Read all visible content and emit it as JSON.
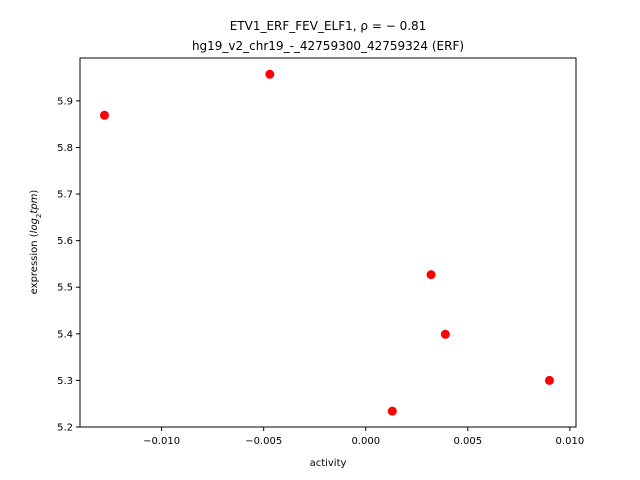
{
  "chart_data": {
    "type": "scatter",
    "title_line1": "ETV1_ERF_FEV_ELF1, ρ = − 0.81",
    "title_line2": "hg19_v2_chr19_-_42759300_42759324 (ERF)",
    "xlabel": "activity",
    "ylabel_prefix": "expression (",
    "ylabel_math": "log",
    "ylabel_sub": "2",
    "ylabel_math2": "tpm",
    "ylabel_suffix": ")",
    "xlim": [
      -0.014,
      0.0103
    ],
    "ylim": [
      5.2,
      5.992
    ],
    "xticks": [
      -0.01,
      -0.005,
      0.0,
      0.005,
      0.01
    ],
    "xtick_labels": [
      "−0.010",
      "−0.005",
      "0.000",
      "0.005",
      "0.010"
    ],
    "yticks": [
      5.2,
      5.3,
      5.4,
      5.5,
      5.6,
      5.7,
      5.8,
      5.9
    ],
    "ytick_labels": [
      "5.2",
      "5.3",
      "5.4",
      "5.5",
      "5.6",
      "5.7",
      "5.8",
      "5.9"
    ],
    "point_color": "#ff0000",
    "grid": false,
    "points": [
      {
        "x": -0.0128,
        "y": 5.869
      },
      {
        "x": -0.0047,
        "y": 5.957
      },
      {
        "x": 0.0032,
        "y": 5.527
      },
      {
        "x": 0.0039,
        "y": 5.399
      },
      {
        "x": 0.009,
        "y": 5.3
      },
      {
        "x": 0.0013,
        "y": 5.234
      }
    ]
  }
}
